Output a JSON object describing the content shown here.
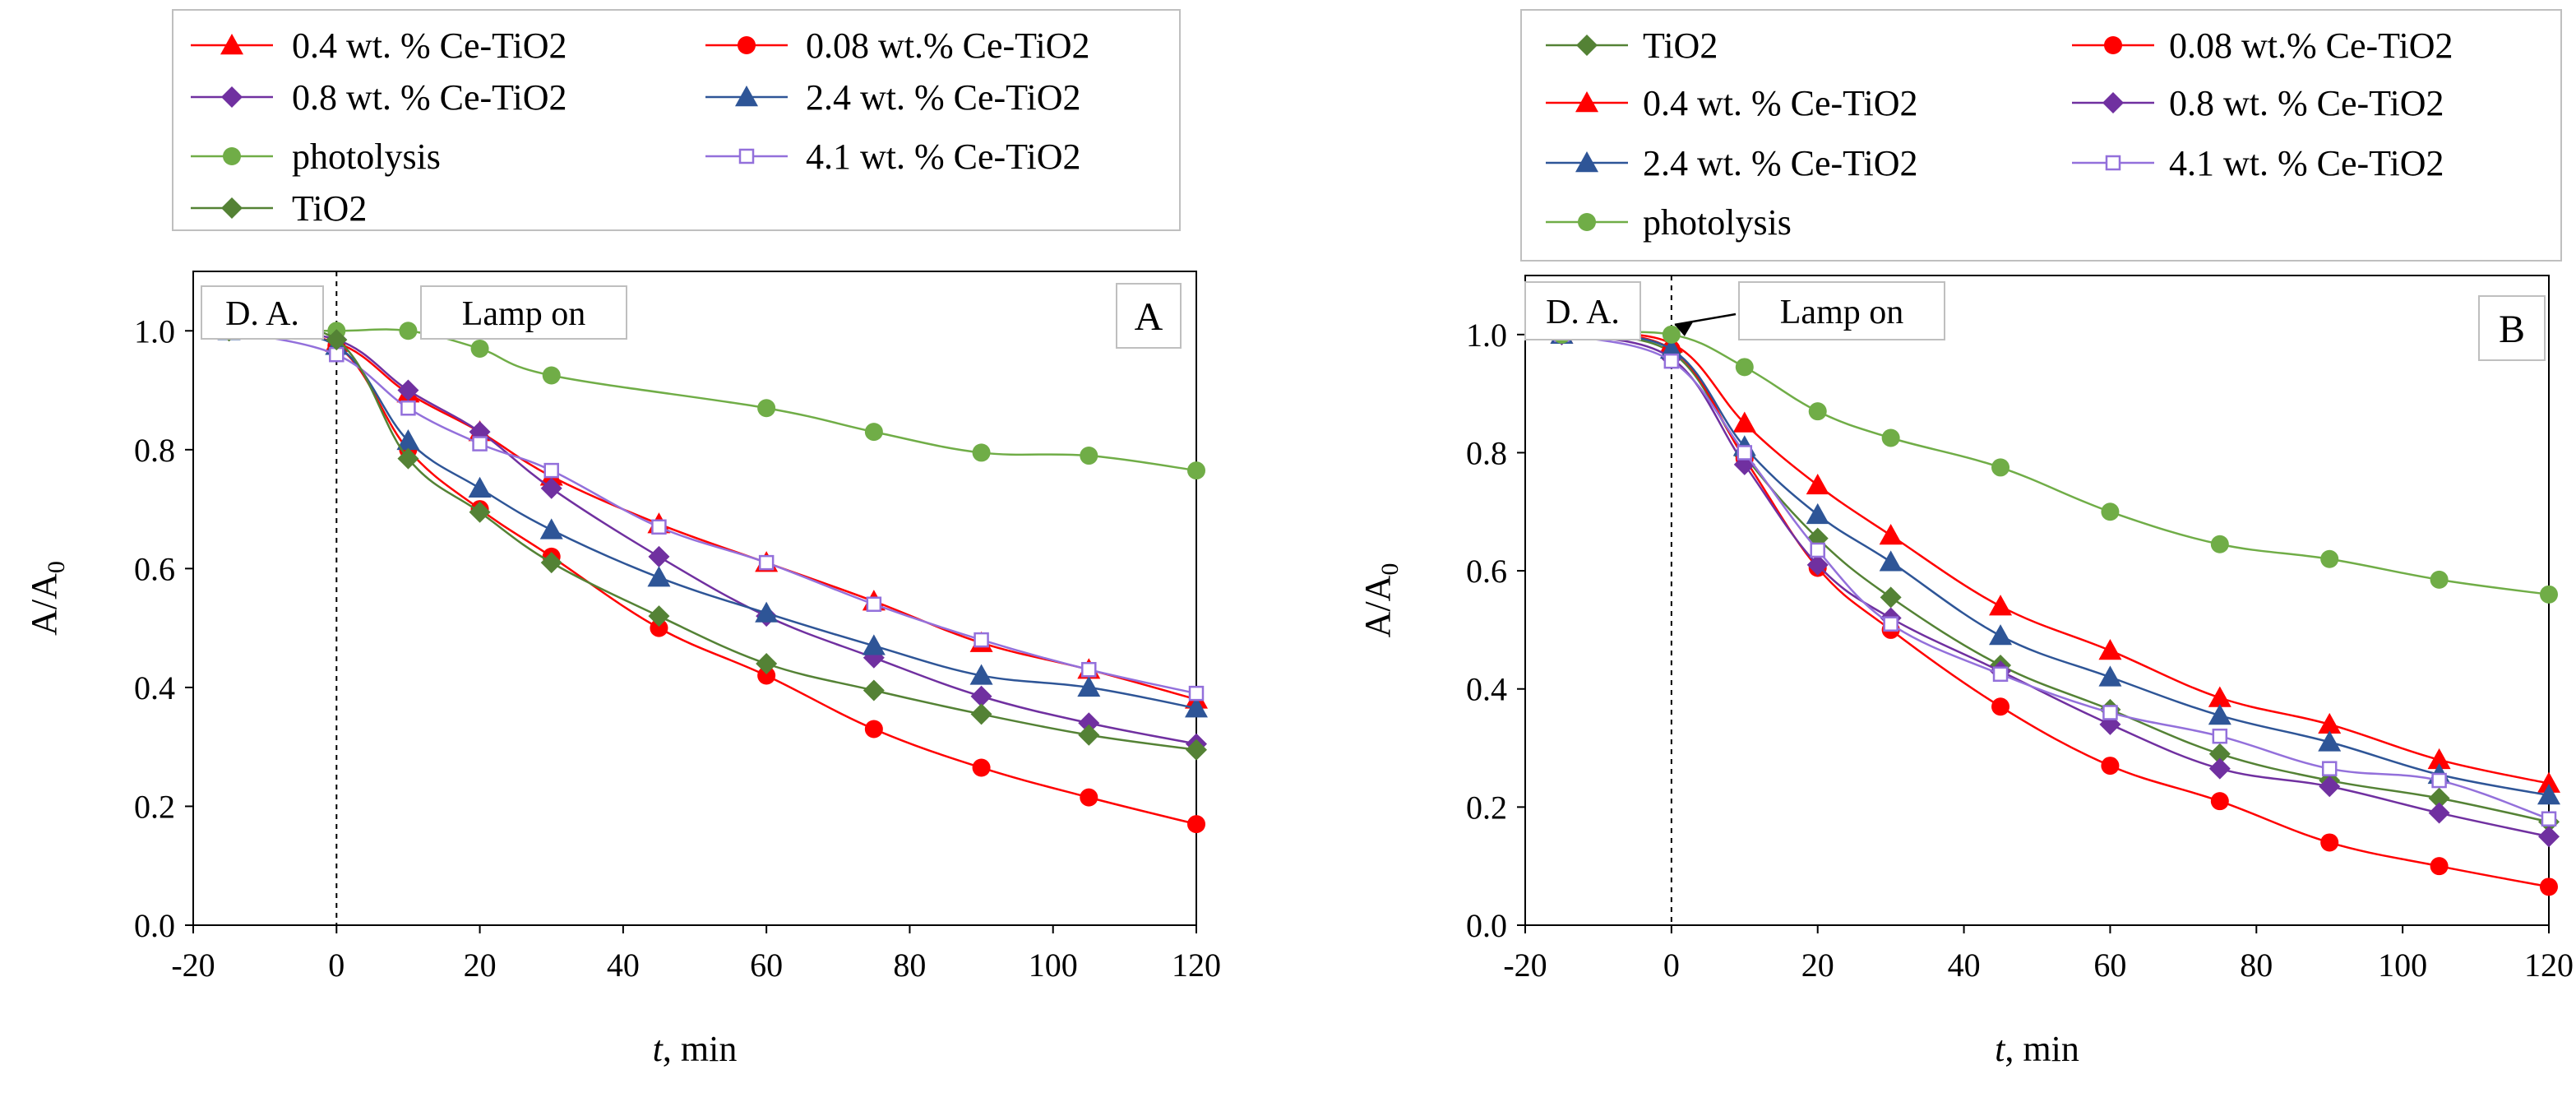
{
  "figure": "Two-panel photocatalytic degradation plot",
  "chart_data": [
    {
      "type": "line",
      "panel_label": "A",
      "xlabel_italic": "t",
      "xlabel_rest": ", min",
      "ylabel": "A/A",
      "ylabel_sub": "0",
      "x_ticks": [
        "-20",
        "0",
        "20",
        "40",
        "60",
        "80",
        "100",
        "120"
      ],
      "y_ticks": [
        "0.0",
        "0.2",
        "0.4",
        "0.6",
        "0.8",
        "1.0"
      ],
      "xlim": [
        -20,
        120
      ],
      "ylim": [
        0.0,
        1.1
      ],
      "annotations": {
        "dark_adsorption": "D. A.",
        "lamp_on": "Lamp on",
        "lamp_on_x": 0
      },
      "legend_columns": 2,
      "legend_order": [
        "0.4 wt. % Ce-TiO2",
        "0.08 wt.% Ce-TiO2",
        "0.8 wt. % Ce-TiO2",
        "2.4 wt. % Ce-TiO2",
        "photolysis",
        "4.1 wt. % Ce-TiO2",
        "TiO2"
      ],
      "series": [
        {
          "name": "0.4 wt. % Ce-TiO2",
          "color": "#ff0000",
          "marker": "triangle",
          "x": [
            -15,
            0,
            10,
            20,
            30,
            45,
            60,
            75,
            90,
            105,
            120
          ],
          "y": [
            1.0,
            0.98,
            0.895,
            0.83,
            0.755,
            0.675,
            0.61,
            0.545,
            0.475,
            0.43,
            0.38
          ]
        },
        {
          "name": "0.08 wt.% Ce-TiO2",
          "color": "#ff0000",
          "marker": "circle",
          "x": [
            -15,
            0,
            10,
            20,
            30,
            45,
            60,
            75,
            90,
            105,
            120
          ],
          "y": [
            1.0,
            0.975,
            0.8,
            0.7,
            0.62,
            0.5,
            0.42,
            0.33,
            0.265,
            0.215,
            0.17
          ]
        },
        {
          "name": "0.8 wt. % Ce-TiO2",
          "color": "#7030a0",
          "marker": "diamond",
          "x": [
            -15,
            0,
            10,
            20,
            30,
            45,
            60,
            75,
            90,
            105,
            120
          ],
          "y": [
            1.0,
            0.985,
            0.9,
            0.83,
            0.735,
            0.62,
            0.52,
            0.45,
            0.385,
            0.34,
            0.305
          ]
        },
        {
          "name": "2.4 wt. % Ce-TiO2",
          "color": "#2e5597",
          "marker": "triangle",
          "x": [
            -15,
            0,
            10,
            20,
            30,
            45,
            60,
            75,
            90,
            105,
            120
          ],
          "y": [
            1.0,
            0.975,
            0.815,
            0.735,
            0.665,
            0.585,
            0.525,
            0.47,
            0.42,
            0.4,
            0.365
          ]
        },
        {
          "name": "photolysis",
          "color": "#70ad47",
          "marker": "circle",
          "x": [
            -15,
            0,
            10,
            20,
            30,
            60,
            75,
            90,
            105,
            120
          ],
          "y": [
            1.0,
            1.0,
            1.0,
            0.97,
            0.925,
            0.87,
            0.83,
            0.795,
            0.79,
            0.765
          ]
        },
        {
          "name": "4.1 wt. % Ce-TiO2",
          "color": "#9370db",
          "marker": "square-open",
          "x": [
            -15,
            0,
            10,
            20,
            30,
            45,
            60,
            75,
            90,
            105,
            120
          ],
          "y": [
            1.0,
            0.96,
            0.87,
            0.81,
            0.765,
            0.67,
            0.61,
            0.54,
            0.48,
            0.43,
            0.39
          ]
        },
        {
          "name": "TiO2",
          "color": "#548235",
          "marker": "diamond",
          "x": [
            -15,
            0,
            10,
            20,
            30,
            45,
            60,
            75,
            90,
            105,
            120
          ],
          "y": [
            1.0,
            0.985,
            0.785,
            0.695,
            0.61,
            0.52,
            0.44,
            0.395,
            0.355,
            0.32,
            0.295
          ]
        }
      ]
    },
    {
      "type": "line",
      "panel_label": "B",
      "xlabel_italic": "t",
      "xlabel_rest": ", min",
      "ylabel": "A/A",
      "ylabel_sub": "0",
      "x_ticks": [
        "-20",
        "0",
        "20",
        "40",
        "60",
        "80",
        "100",
        "120"
      ],
      "y_ticks": [
        "0.0",
        "0.2",
        "0.4",
        "0.6",
        "0.8",
        "1.0"
      ],
      "xlim": [
        -20,
        120
      ],
      "ylim": [
        0.0,
        1.1
      ],
      "annotations": {
        "dark_adsorption": "D. A.",
        "lamp_on": "Lamp on",
        "lamp_on_x": 0
      },
      "legend_columns": 2,
      "legend_order": [
        "TiO2",
        "0.08 wt.% Ce-TiO2",
        "0.4 wt. % Ce-TiO2",
        "0.8 wt. % Ce-TiO2",
        "2.4 wt. % Ce-TiO2",
        "4.1 wt. % Ce-TiO2",
        "photolysis"
      ],
      "series": [
        {
          "name": "TiO2",
          "color": "#548235",
          "marker": "diamond",
          "x": [
            -15,
            0,
            10,
            20,
            30,
            45,
            60,
            75,
            90,
            105,
            120
          ],
          "y": [
            1.0,
            0.97,
            0.795,
            0.655,
            0.555,
            0.44,
            0.365,
            0.29,
            0.245,
            0.215,
            0.175
          ]
        },
        {
          "name": "0.08 wt.% Ce-TiO2",
          "color": "#ff0000",
          "marker": "circle",
          "x": [
            -15,
            0,
            10,
            20,
            30,
            45,
            60,
            75,
            90,
            105,
            120
          ],
          "y": [
            1.0,
            0.975,
            0.79,
            0.605,
            0.5,
            0.37,
            0.27,
            0.21,
            0.14,
            0.1,
            0.065
          ]
        },
        {
          "name": "0.4 wt. % Ce-TiO2",
          "color": "#ff0000",
          "marker": "triangle",
          "x": [
            -15,
            0,
            10,
            20,
            30,
            45,
            60,
            75,
            90,
            105,
            120
          ],
          "y": [
            1.0,
            0.985,
            0.85,
            0.745,
            0.66,
            0.54,
            0.465,
            0.385,
            0.34,
            0.28,
            0.24
          ]
        },
        {
          "name": "0.8 wt. % Ce-TiO2",
          "color": "#7030a0",
          "marker": "diamond",
          "x": [
            -15,
            0,
            10,
            20,
            30,
            45,
            60,
            75,
            90,
            105,
            120
          ],
          "y": [
            1.0,
            0.96,
            0.78,
            0.61,
            0.52,
            0.43,
            0.34,
            0.265,
            0.235,
            0.19,
            0.15
          ]
        },
        {
          "name": "2.4 wt. % Ce-TiO2",
          "color": "#2e5597",
          "marker": "triangle",
          "x": [
            -15,
            0,
            10,
            20,
            30,
            45,
            60,
            75,
            90,
            105,
            120
          ],
          "y": [
            1.0,
            0.975,
            0.81,
            0.695,
            0.615,
            0.49,
            0.42,
            0.355,
            0.31,
            0.255,
            0.22
          ]
        },
        {
          "name": "4.1 wt. % Ce-TiO2",
          "color": "#9370db",
          "marker": "square-open",
          "x": [
            -15,
            0,
            10,
            20,
            30,
            45,
            60,
            75,
            90,
            105,
            120
          ],
          "y": [
            1.0,
            0.955,
            0.8,
            0.635,
            0.51,
            0.425,
            0.36,
            0.32,
            0.265,
            0.245,
            0.18
          ]
        },
        {
          "name": "photolysis",
          "color": "#70ad47",
          "marker": "circle",
          "x": [
            -15,
            0,
            10,
            20,
            30,
            45,
            60,
            75,
            90,
            105,
            120
          ],
          "y": [
            1.0,
            1.0,
            0.945,
            0.87,
            0.825,
            0.775,
            0.7,
            0.645,
            0.62,
            0.585,
            0.56
          ]
        }
      ]
    }
  ]
}
